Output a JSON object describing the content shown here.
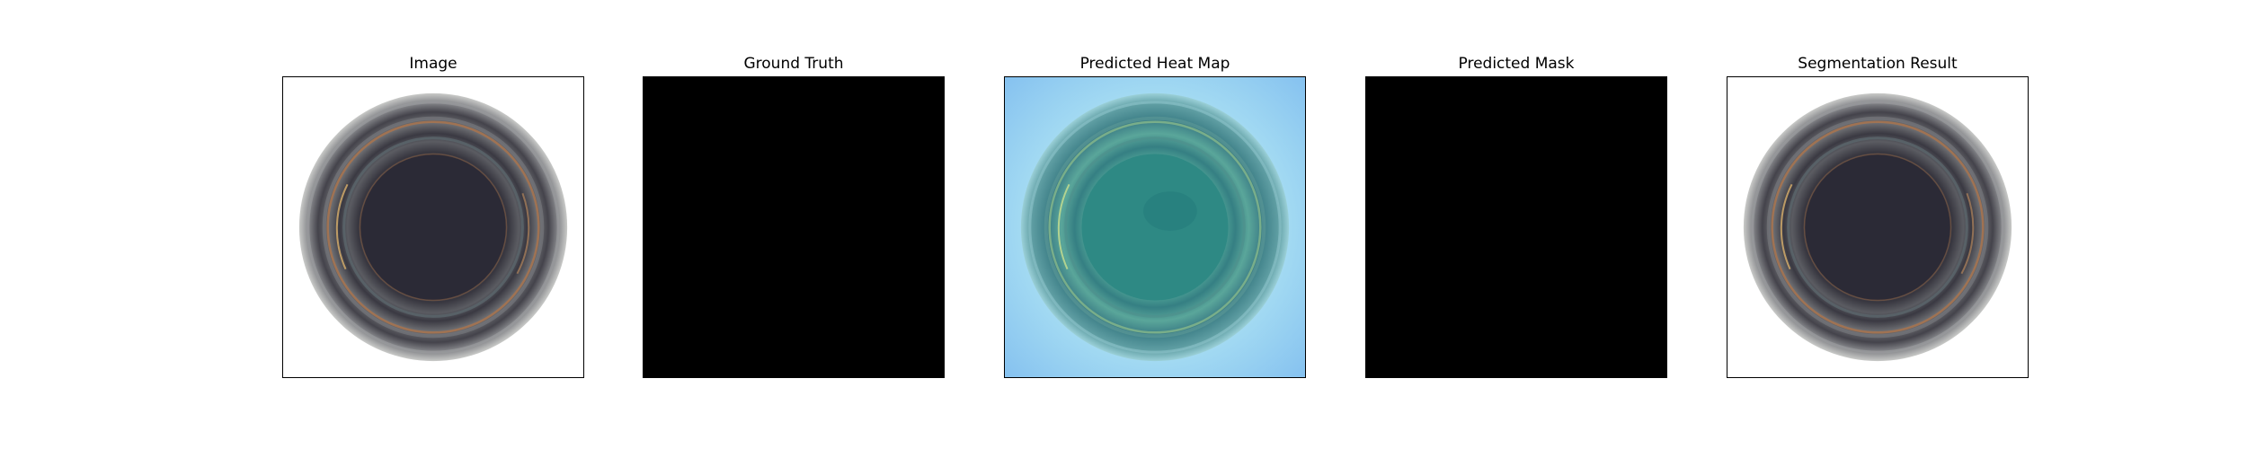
{
  "panels": [
    {
      "title": "Image",
      "content": "bottle-bottom-photo"
    },
    {
      "title": "Ground Truth",
      "content": "empty-mask"
    },
    {
      "title": "Predicted Heat Map",
      "content": "heatmap-overlay"
    },
    {
      "title": "Predicted Mask",
      "content": "empty-mask"
    },
    {
      "title": "Segmentation Result",
      "content": "bottle-bottom-photo"
    }
  ],
  "colors": {
    "mask_fill": "#000000",
    "heatmap_background": "#8ec8f0",
    "photo_background": "#ffffff"
  }
}
